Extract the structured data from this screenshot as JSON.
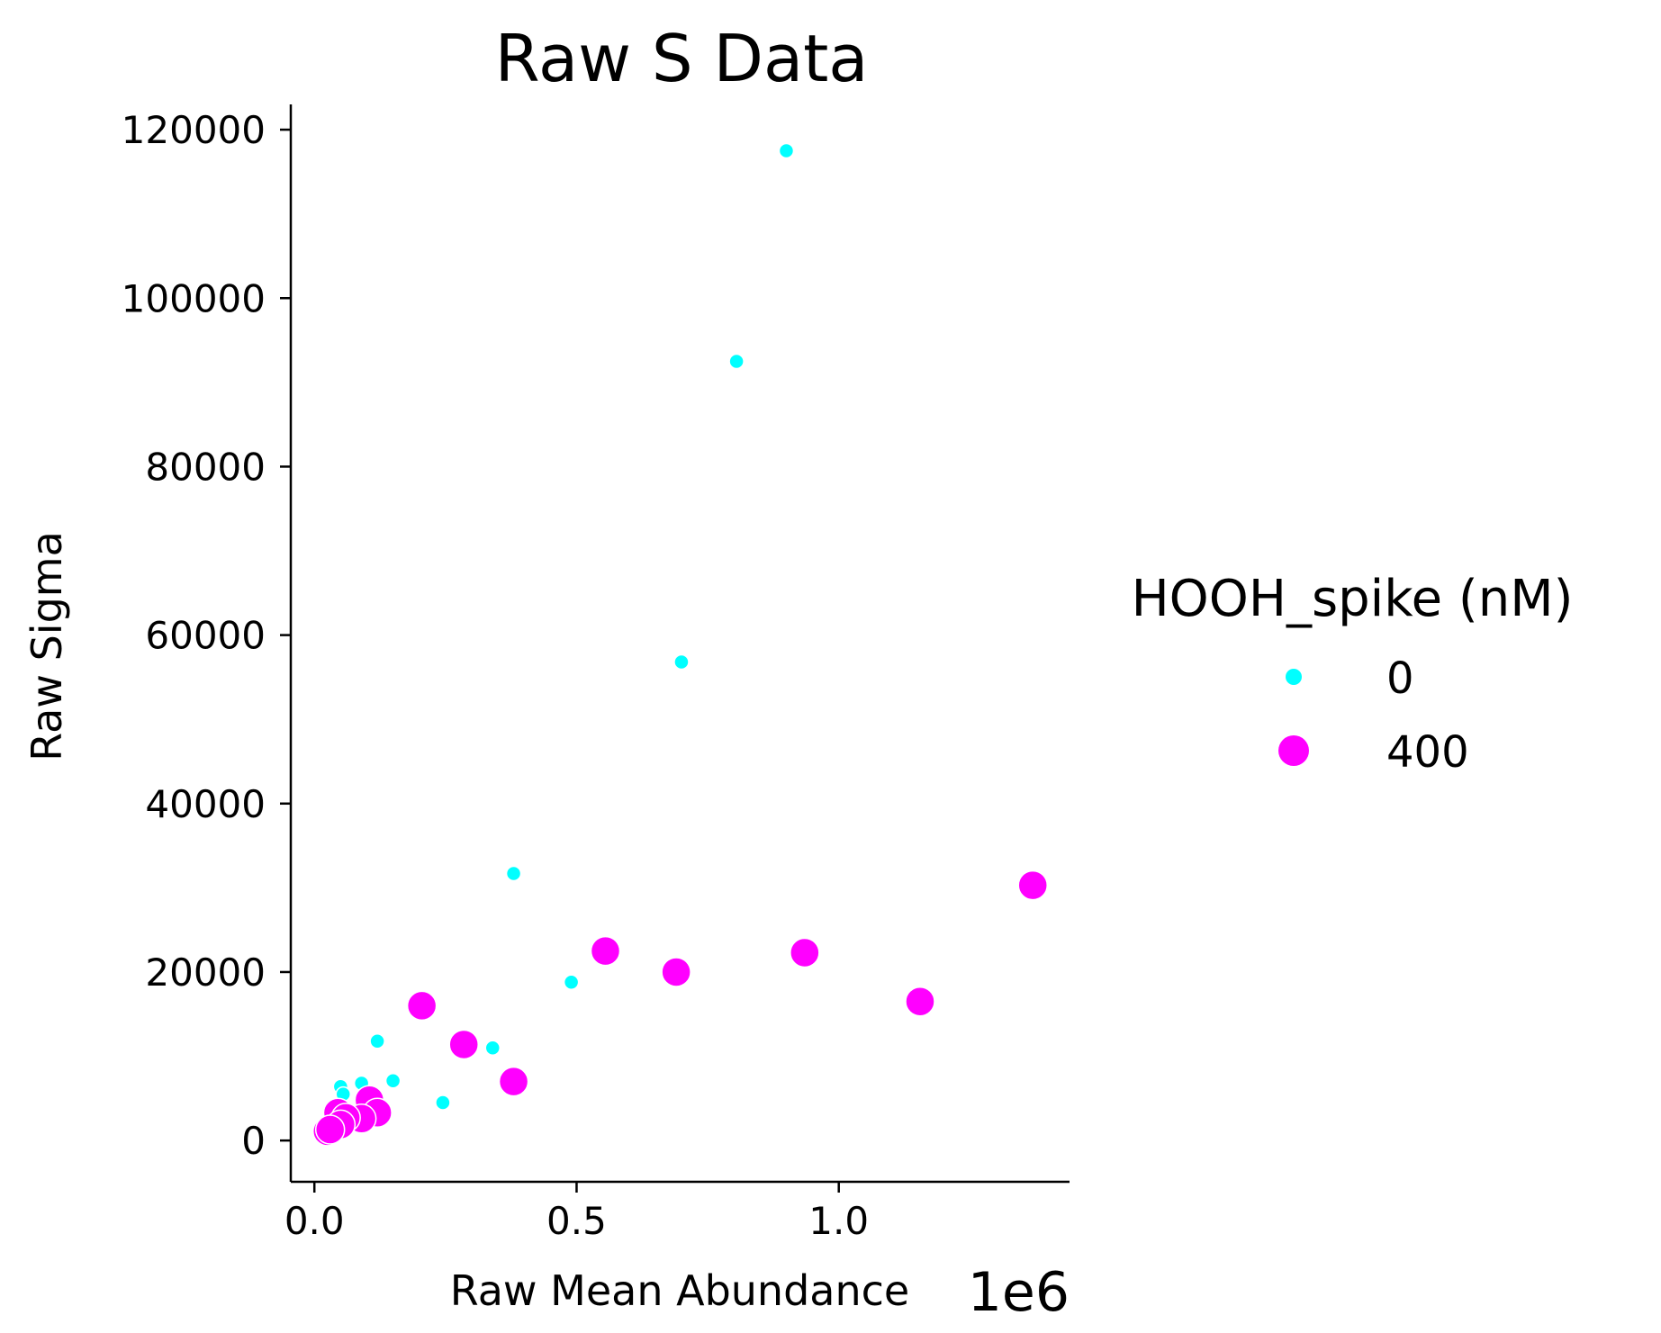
{
  "chart_data": {
    "type": "scatter",
    "title": "Raw S Data",
    "xlabel": "Raw Mean Abundance",
    "x_offset_label": "1e6",
    "ylabel": "Raw Sigma",
    "xlim": [
      -0.045,
      1.44
    ],
    "ylim": [
      -4900,
      123000
    ],
    "x_ticks": [
      0.0,
      0.5,
      1.0
    ],
    "x_tick_labels": [
      "0.0",
      "0.5",
      "1.0"
    ],
    "y_ticks": [
      0,
      20000,
      40000,
      60000,
      80000,
      100000,
      120000
    ],
    "y_tick_labels": [
      "0",
      "20000",
      "40000",
      "60000",
      "80000",
      "100000",
      "120000"
    ],
    "grid": false,
    "legend": {
      "title": "HOOH_spike (nM)",
      "placement": "right"
    },
    "series": [
      {
        "name": "0",
        "color": "#00ffff",
        "marker_size": "small",
        "points": [
          {
            "x": 0.9,
            "y": 117500
          },
          {
            "x": 0.805,
            "y": 92500
          },
          {
            "x": 0.7,
            "y": 56800
          },
          {
            "x": 0.38,
            "y": 31700
          },
          {
            "x": 0.49,
            "y": 18800
          },
          {
            "x": 0.34,
            "y": 11000
          },
          {
            "x": 0.12,
            "y": 11800
          },
          {
            "x": 0.15,
            "y": 7100
          },
          {
            "x": 0.245,
            "y": 4500
          },
          {
            "x": 0.09,
            "y": 6800
          },
          {
            "x": 0.05,
            "y": 6400
          },
          {
            "x": 0.055,
            "y": 5500
          },
          {
            "x": 0.06,
            "y": 3800
          }
        ]
      },
      {
        "name": "400",
        "color": "#ff00ff",
        "marker_size": "large",
        "points": [
          {
            "x": 1.37,
            "y": 30300
          },
          {
            "x": 0.555,
            "y": 22500
          },
          {
            "x": 0.935,
            "y": 22300
          },
          {
            "x": 0.69,
            "y": 20000
          },
          {
            "x": 1.155,
            "y": 16500
          },
          {
            "x": 0.205,
            "y": 16000
          },
          {
            "x": 0.285,
            "y": 11400
          },
          {
            "x": 0.38,
            "y": 7000
          },
          {
            "x": 0.105,
            "y": 4800
          },
          {
            "x": 0.12,
            "y": 3300
          },
          {
            "x": 0.09,
            "y": 2600
          },
          {
            "x": 0.045,
            "y": 3300
          },
          {
            "x": 0.06,
            "y": 2700
          },
          {
            "x": 0.05,
            "y": 1900
          },
          {
            "x": 0.025,
            "y": 1100
          },
          {
            "x": 0.03,
            "y": 1300
          }
        ]
      }
    ]
  }
}
